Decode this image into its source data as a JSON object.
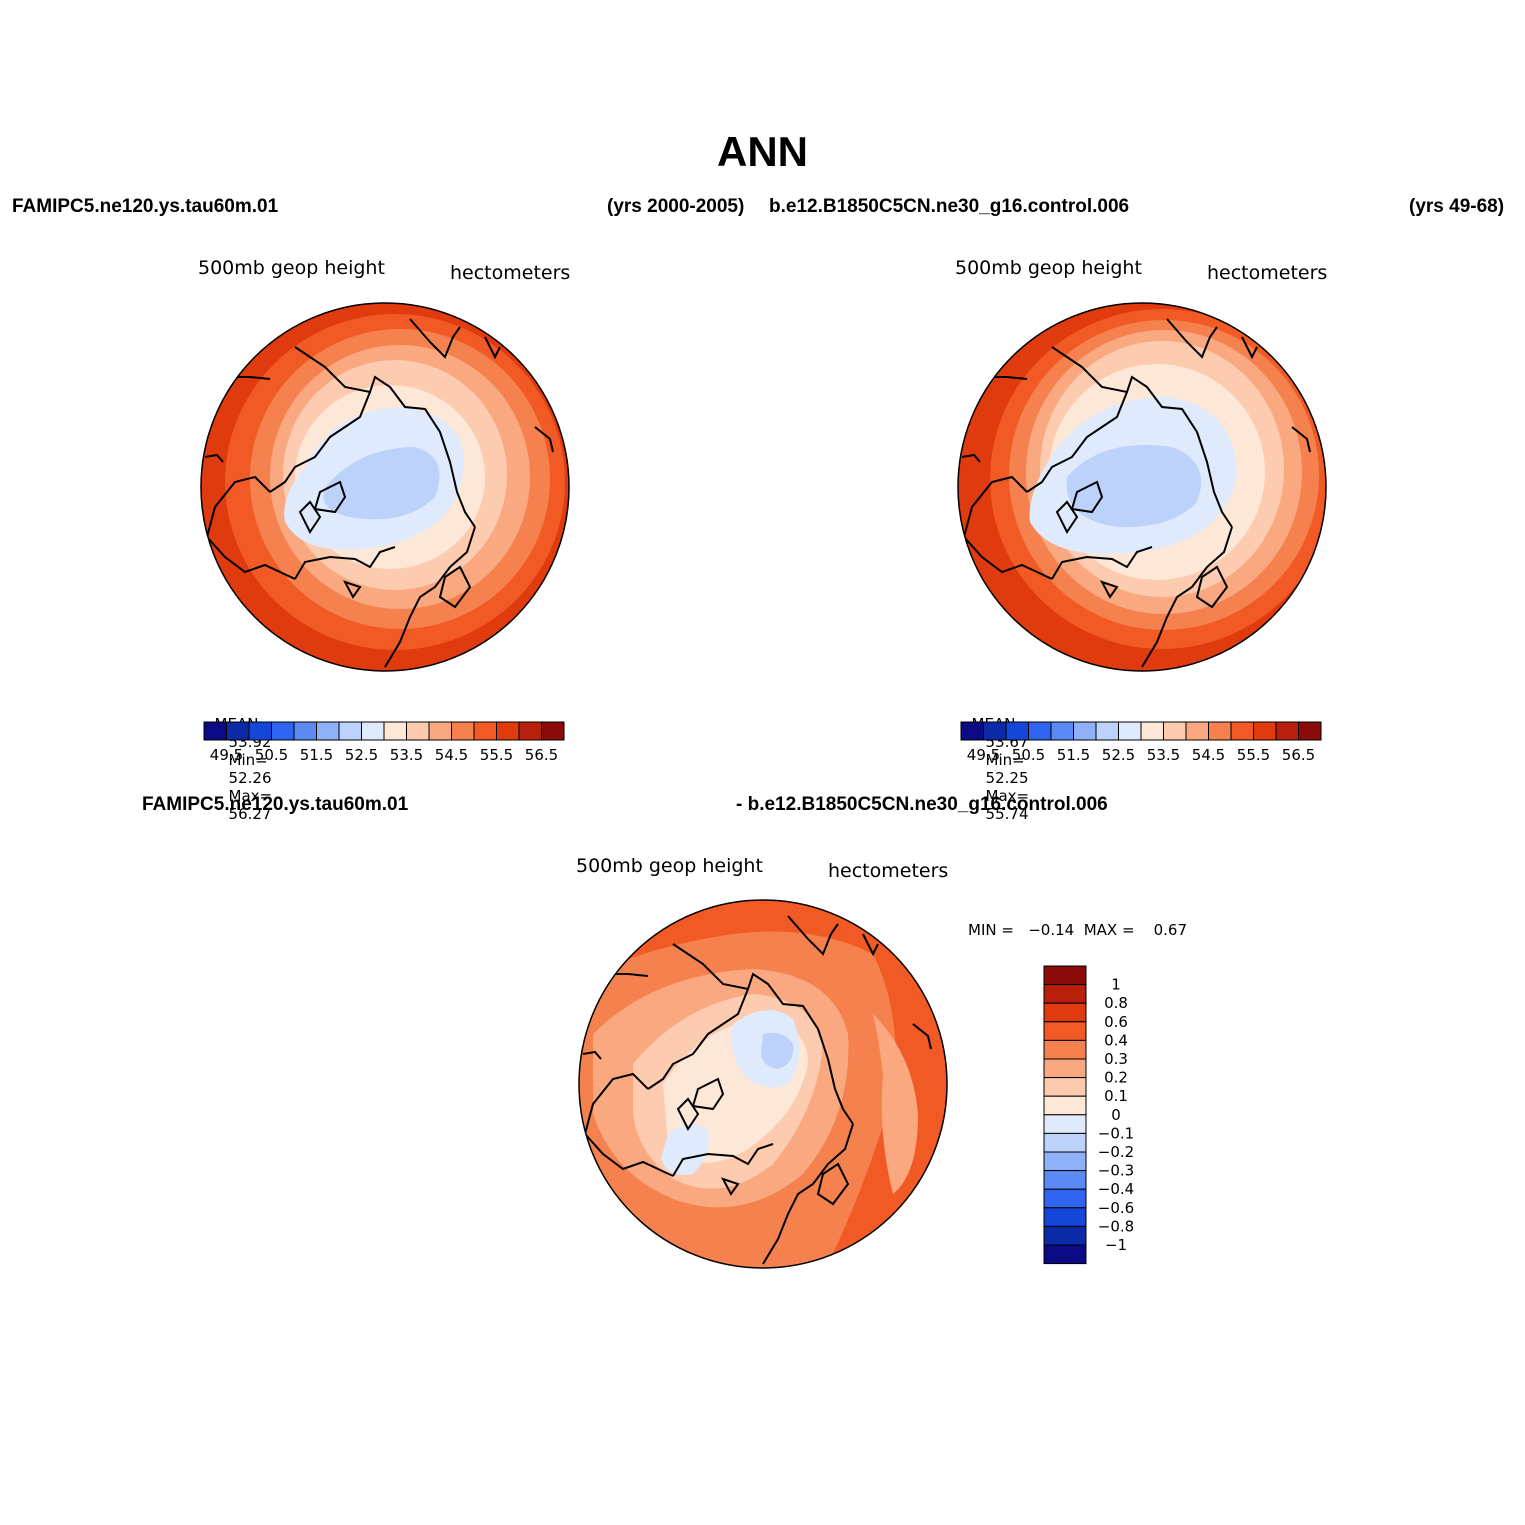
{
  "title": "ANN",
  "panel1": {
    "case": "FAMIPC5.ne120.ys.tau60m.01",
    "years": "(yrs 2000-2005)",
    "left_label": "500mb  geop  height",
    "right_label": "hectometers",
    "stats": {
      "mean_label": "MEAN=",
      "mean": "53.92",
      "min_label": "Min=",
      "min": "52.26",
      "max_label": "Max=",
      "max": "56.27"
    }
  },
  "panel2": {
    "case": "b.e12.B1850C5CN.ne30_g16.control.006",
    "years": "(yrs 49-68)",
    "left_label": "500mb  geop  height",
    "right_label": "hectometers",
    "stats": {
      "mean_label": "MEAN=",
      "mean": "53.67",
      "min_label": "Min=",
      "min": "52.25",
      "max_label": "Max=",
      "max": "55.74"
    }
  },
  "panel3": {
    "case_left": "FAMIPC5.ne120.ys.tau60m.01",
    "case_right": "- b.e12.B1850C5CN.ne30_g16.control.006",
    "left_label": "500mb  geop  height",
    "right_label": "hectometers",
    "minmax": "MIN =   −0.14  MAX =    0.67"
  },
  "colorbar_abs": {
    "colors": [
      "#0a0a84",
      "#0b2aa8",
      "#1446d8",
      "#2f63f0",
      "#5b8af4",
      "#8fb1f7",
      "#bcd2fa",
      "#dfeafd",
      "#fde7d6",
      "#fccbb0",
      "#f9a880",
      "#f5814f",
      "#f15a24",
      "#e03a0f",
      "#b8200b",
      "#8b0a0a"
    ],
    "labels": [
      "49.5",
      "50.5",
      "51.5",
      "52.5",
      "53.5",
      "54.5",
      "55.5",
      "56.5"
    ]
  },
  "colorbar_diff": {
    "colors": [
      "#8b0a0a",
      "#b8200b",
      "#e03a0f",
      "#f15a24",
      "#f5814f",
      "#f9a880",
      "#fccbb0",
      "#fde7d6",
      "#dfeafd",
      "#bcd2fa",
      "#8fb1f7",
      "#5b8af4",
      "#2f63f0",
      "#1446d8",
      "#0b2aa8",
      "#0a0a84"
    ],
    "labels": [
      "1",
      "0.8",
      "0.6",
      "0.4",
      "0.3",
      "0.2",
      "0.1",
      "0",
      "−0.1",
      "−0.2",
      "−0.3",
      "−0.4",
      "−0.6",
      "−0.8",
      "−1"
    ]
  }
}
